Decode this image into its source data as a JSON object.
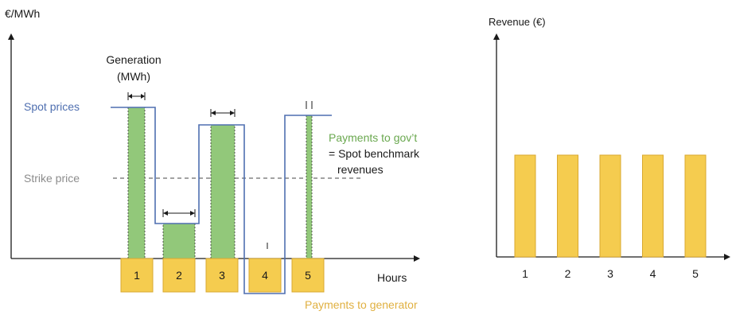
{
  "colors": {
    "spot_line": "#4f6fb0",
    "green_fill": "#92c87a",
    "green_text": "#6aa84f",
    "yellow_fill": "#f5cc4f",
    "yellow_stroke": "#d9a830",
    "yellow_text": "#e0b040",
    "grey_text": "#8c8c8c",
    "axis": "#1a1a1a"
  },
  "left_panel": {
    "y_axis_label": "€/MWh",
    "generation_label_line1": "Generation",
    "generation_label_line2": "(MWh)",
    "spot_prices_label": "Spot prices",
    "strike_price_label": "Strike price",
    "payments_gov_line1": "Payments to gov’t",
    "payments_gov_line2": "= Spot benchmark",
    "payments_gov_line3": "revenues",
    "hours_label": "Hours",
    "payments_generator_label": "Payments to generator",
    "hour_boxes": [
      "1",
      "2",
      "3",
      "4",
      "5"
    ]
  },
  "right_panel": {
    "y_axis_label": "Revenue (€)",
    "categories": [
      "1",
      "2",
      "3",
      "4",
      "5"
    ]
  },
  "chart_data": {
    "type": "bar",
    "title": "",
    "ylabel": "Revenue (€)",
    "xlabel": "",
    "categories": [
      "1",
      "2",
      "3",
      "4",
      "5"
    ],
    "values": [
      1,
      1,
      1,
      1,
      1
    ]
  }
}
